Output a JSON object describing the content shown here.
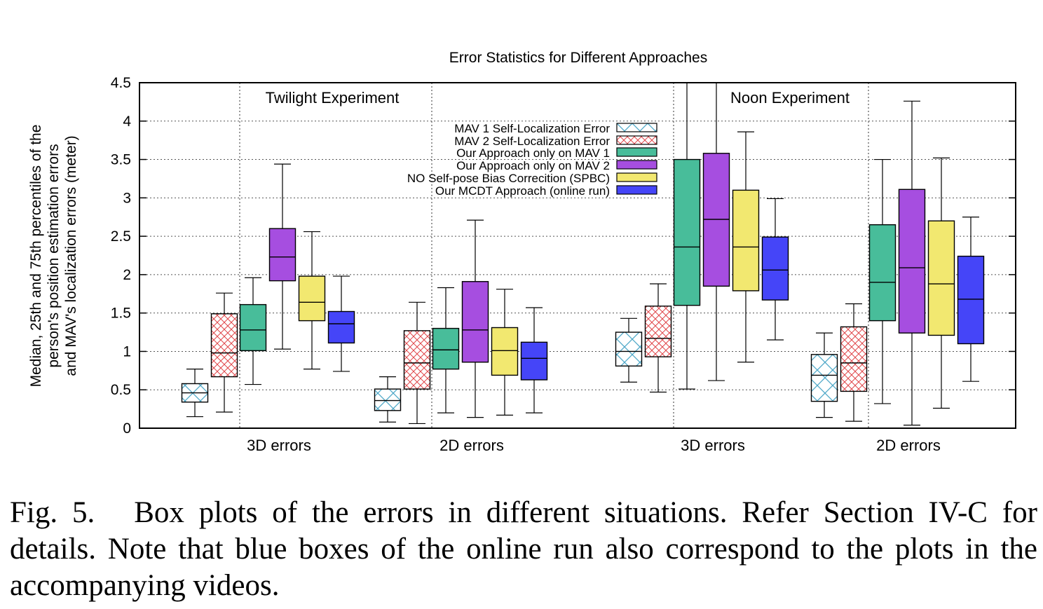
{
  "chart_data": {
    "type": "boxplot",
    "title": "Error Statistics for Different Approaches",
    "xlabel": "",
    "ylabel_lines": [
      "Median, 25th and 75th percentiles of the",
      "person's position estimation errors",
      "and MAV's localization errors (meter)"
    ],
    "ylim": [
      0,
      4.5
    ],
    "yticks": [
      "0",
      "0.5",
      "1",
      "1.5",
      "2",
      "2.5",
      "3",
      "3.5",
      "4",
      "4.5"
    ],
    "grid": true,
    "legend_position": "top-center",
    "experiments": [
      "Twilight Experiment",
      "Noon Experiment"
    ],
    "groups": [
      {
        "label": "3D errors",
        "experiment": "Twilight Experiment"
      },
      {
        "label": "2D errors",
        "experiment": "Twilight Experiment"
      },
      {
        "label": "3D errors",
        "experiment": "Noon Experiment"
      },
      {
        "label": "2D errors",
        "experiment": "Noon Experiment"
      }
    ],
    "series": [
      {
        "name": "MAV 1 Self-Localization Error",
        "fill": "#ffffff",
        "hatch": "cross",
        "hatch_color": "#4fa8c8",
        "boxes": [
          {
            "group": 0,
            "min": 0.15,
            "q1": 0.34,
            "median": 0.46,
            "q3": 0.58,
            "max": 0.77
          },
          {
            "group": 1,
            "min": 0.08,
            "q1": 0.23,
            "median": 0.36,
            "q3": 0.51,
            "max": 0.67
          },
          {
            "group": 2,
            "min": 0.6,
            "q1": 0.81,
            "median": 1.0,
            "q3": 1.25,
            "max": 1.43
          },
          {
            "group": 3,
            "min": 0.14,
            "q1": 0.35,
            "median": 0.69,
            "q3": 0.96,
            "max": 1.24
          }
        ]
      },
      {
        "name": "MAV 2 Self-Localization Error",
        "fill": "#ffffff",
        "hatch": "crosshatch",
        "hatch_color": "#e0464a",
        "boxes": [
          {
            "group": 0,
            "min": 0.21,
            "q1": 0.67,
            "median": 0.98,
            "q3": 1.49,
            "max": 1.76
          },
          {
            "group": 1,
            "min": 0.06,
            "q1": 0.51,
            "median": 0.85,
            "q3": 1.27,
            "max": 1.64
          },
          {
            "group": 2,
            "min": 0.47,
            "q1": 0.93,
            "median": 1.17,
            "q3": 1.59,
            "max": 1.88
          },
          {
            "group": 3,
            "min": 0.09,
            "q1": 0.48,
            "median": 0.85,
            "q3": 1.32,
            "max": 1.62
          }
        ]
      },
      {
        "name": "Our Approach only on MAV 1",
        "fill": "#48bd9a",
        "boxes": [
          {
            "group": 0,
            "min": 0.57,
            "q1": 1.01,
            "median": 1.28,
            "q3": 1.61,
            "max": 1.96
          },
          {
            "group": 1,
            "min": 0.2,
            "q1": 0.77,
            "median": 1.02,
            "q3": 1.3,
            "max": 1.83
          },
          {
            "group": 2,
            "min": 0.51,
            "q1": 1.6,
            "median": 2.36,
            "q3": 3.5,
            "max": 4.5
          },
          {
            "group": 3,
            "min": 0.32,
            "q1": 1.4,
            "median": 1.9,
            "q3": 2.65,
            "max": 3.5
          }
        ]
      },
      {
        "name": "Our Approach only on MAV 2",
        "fill": "#a64ee0",
        "boxes": [
          {
            "group": 0,
            "min": 1.03,
            "q1": 1.92,
            "median": 2.23,
            "q3": 2.6,
            "max": 3.44
          },
          {
            "group": 1,
            "min": 0.14,
            "q1": 0.86,
            "median": 1.28,
            "q3": 1.91,
            "max": 2.71
          },
          {
            "group": 2,
            "min": 0.62,
            "q1": 1.85,
            "median": 2.72,
            "q3": 3.58,
            "max": 4.5
          },
          {
            "group": 3,
            "min": 0.04,
            "q1": 1.24,
            "median": 2.09,
            "q3": 3.11,
            "max": 4.26
          }
        ]
      },
      {
        "name": "NO Self-pose Bias Correcition (SPBC)",
        "fill": "#f2e870",
        "boxes": [
          {
            "group": 0,
            "min": 0.77,
            "q1": 1.4,
            "median": 1.64,
            "q3": 1.98,
            "max": 2.56
          },
          {
            "group": 1,
            "min": 0.17,
            "q1": 0.69,
            "median": 1.01,
            "q3": 1.31,
            "max": 1.81
          },
          {
            "group": 2,
            "min": 0.86,
            "q1": 1.79,
            "median": 2.36,
            "q3": 3.1,
            "max": 3.86
          },
          {
            "group": 3,
            "min": 0.26,
            "q1": 1.21,
            "median": 1.88,
            "q3": 2.7,
            "max": 3.52
          }
        ]
      },
      {
        "name": "Our MCDT Approach (online run)",
        "fill": "#4545f8",
        "boxes": [
          {
            "group": 0,
            "min": 0.74,
            "q1": 1.11,
            "median": 1.36,
            "q3": 1.52,
            "max": 1.98
          },
          {
            "group": 1,
            "min": 0.2,
            "q1": 0.63,
            "median": 0.91,
            "q3": 1.12,
            "max": 1.57
          },
          {
            "group": 2,
            "min": 1.15,
            "q1": 1.67,
            "median": 2.06,
            "q3": 2.49,
            "max": 2.99
          },
          {
            "group": 3,
            "min": 0.61,
            "q1": 1.1,
            "median": 1.68,
            "q3": 2.24,
            "max": 2.75
          }
        ]
      }
    ]
  },
  "caption": {
    "label": "Fig. 5.",
    "text": "Box plots of the errors in different situations. Refer Section IV-C for details. Note that blue boxes of the online run also correspond to the plots in the accompanying videos."
  }
}
